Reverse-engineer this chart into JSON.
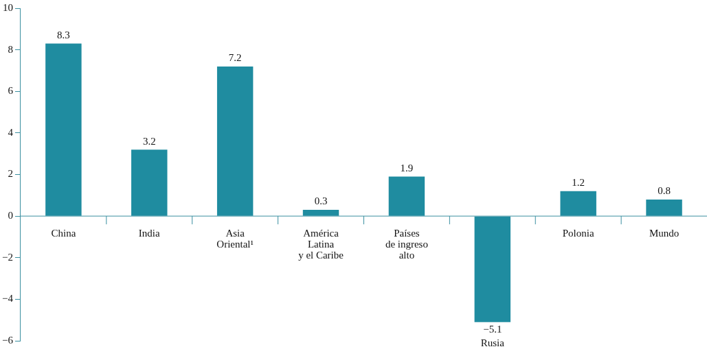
{
  "chart_data": {
    "type": "bar",
    "categories": [
      "China",
      "India",
      "Asia\nOriental¹",
      "América\nLatina\ny el Caribe",
      "Países\nde ingreso\nalto",
      "Rusia",
      "Polonia",
      "Mundo"
    ],
    "values": [
      8.3,
      3.2,
      7.2,
      0.3,
      1.9,
      -5.1,
      1.2,
      0.8
    ],
    "color": "#1f8ca0",
    "ylim": [
      -6,
      10
    ],
    "yticks": [
      -6,
      -4,
      -2,
      0,
      2,
      4,
      6,
      8,
      10
    ],
    "grid": false,
    "legend": false,
    "data_labels": true
  }
}
